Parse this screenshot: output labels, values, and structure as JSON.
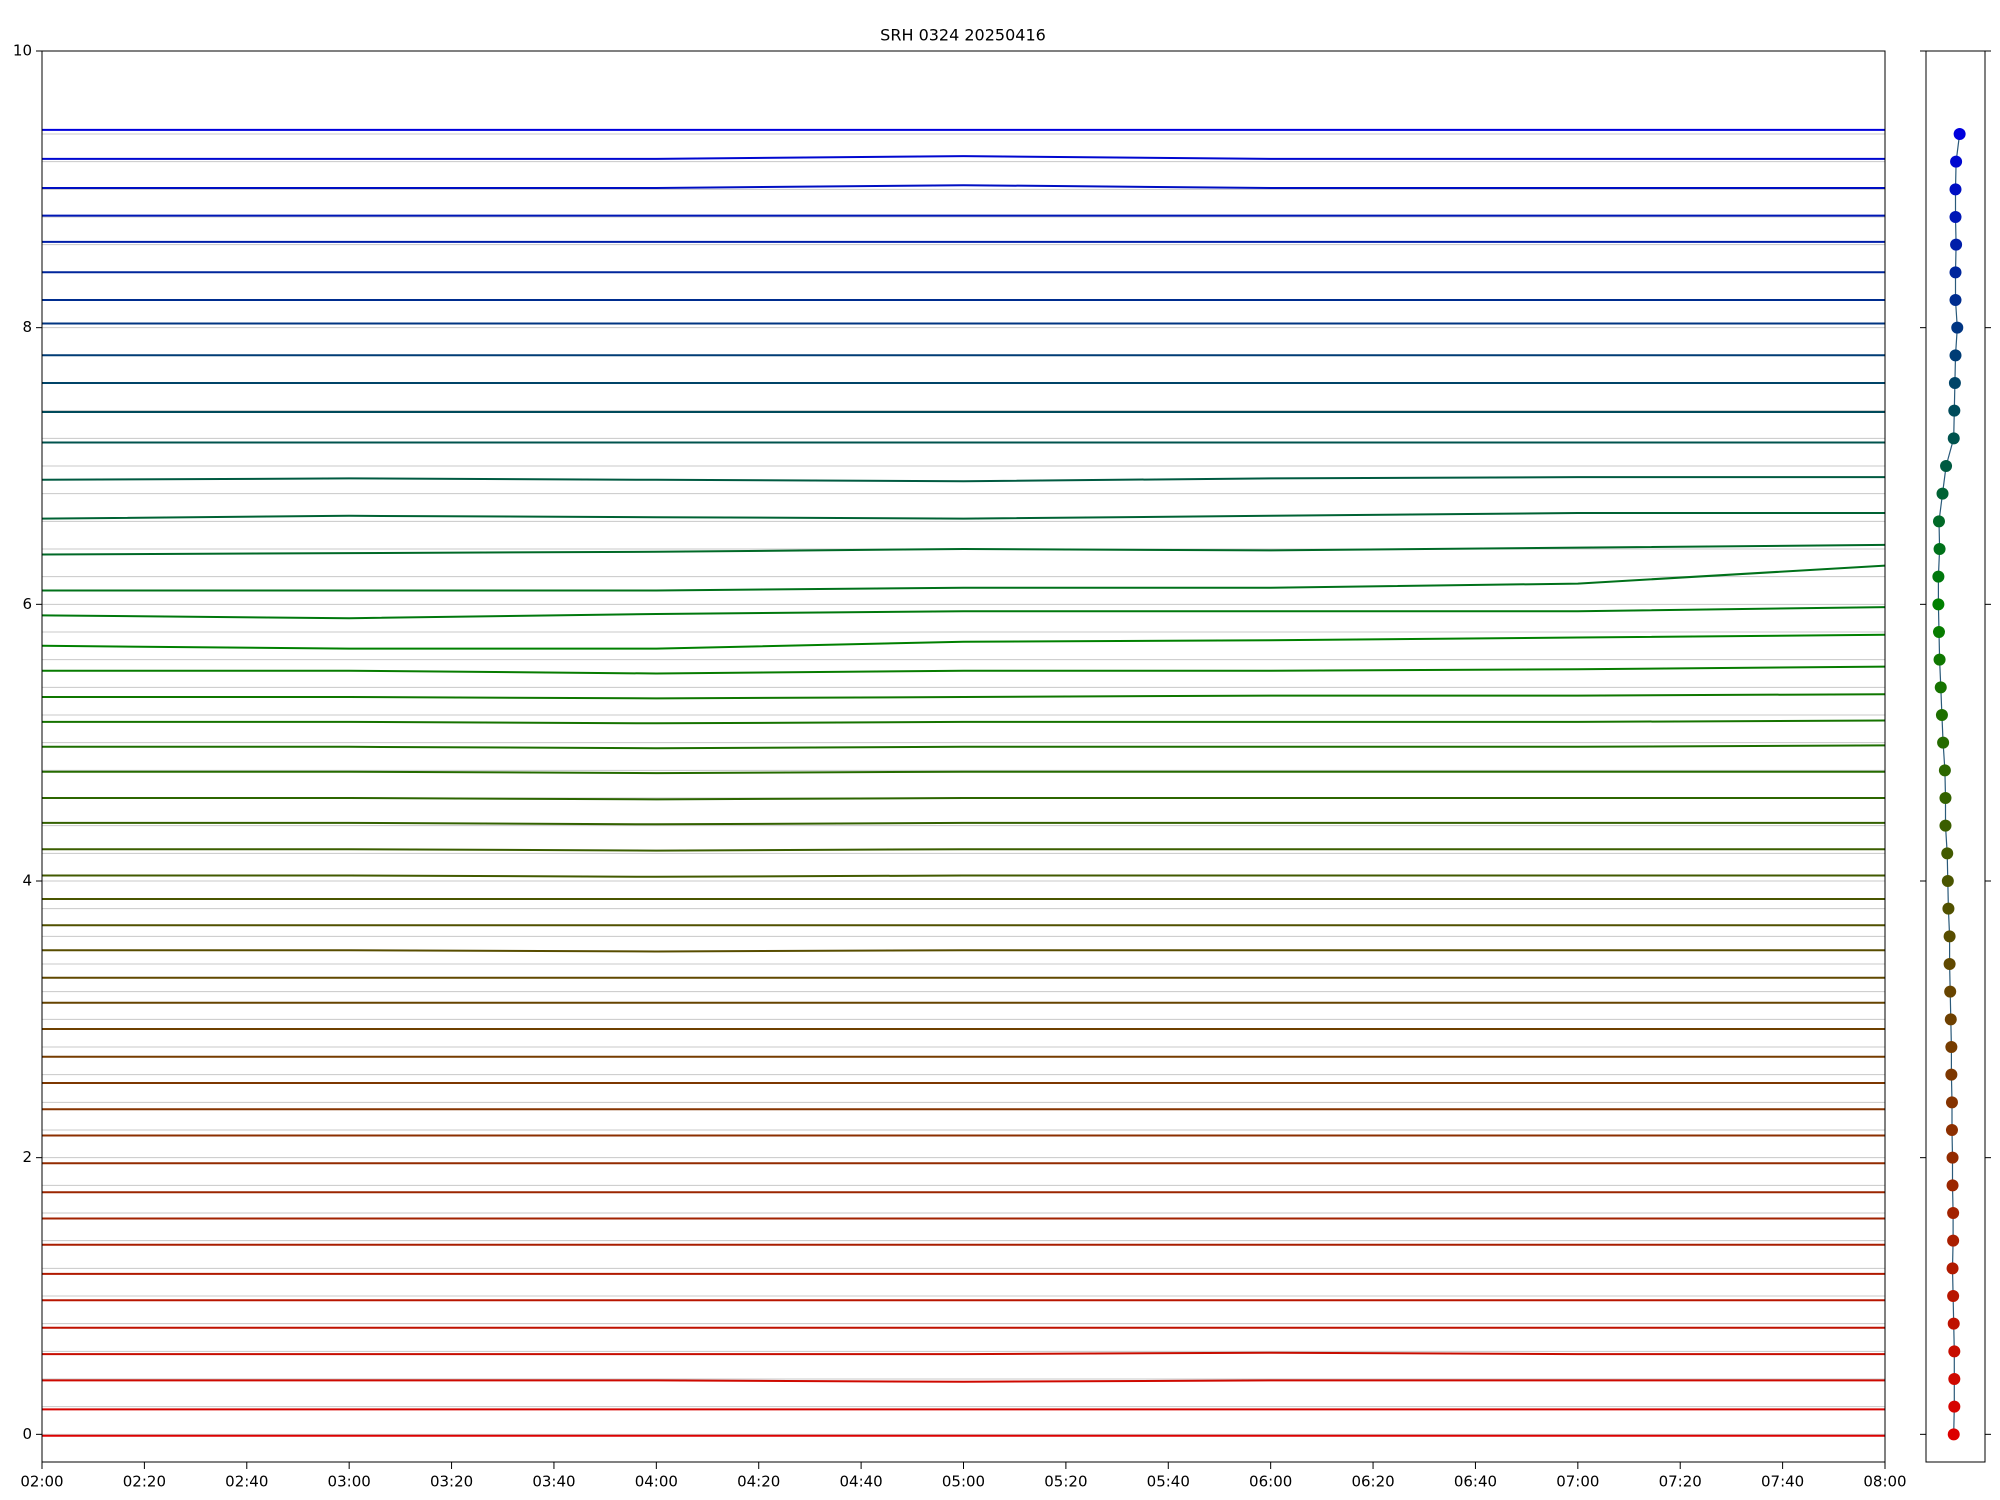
{
  "chart_data": [
    {
      "type": "line",
      "title": "SRH 0324 20250416",
      "x": [
        120,
        180,
        240,
        300,
        360,
        420,
        480
      ],
      "xlim": [
        120,
        480
      ],
      "xticks": [
        {
          "value": 120,
          "label": "02:00"
        },
        {
          "value": 140,
          "label": "02:20"
        },
        {
          "value": 160,
          "label": "02:40"
        },
        {
          "value": 180,
          "label": "03:00"
        },
        {
          "value": 200,
          "label": "03:20"
        },
        {
          "value": 220,
          "label": "03:40"
        },
        {
          "value": 240,
          "label": "04:00"
        },
        {
          "value": 260,
          "label": "04:20"
        },
        {
          "value": 280,
          "label": "04:40"
        },
        {
          "value": 300,
          "label": "05:00"
        },
        {
          "value": 320,
          "label": "05:20"
        },
        {
          "value": 340,
          "label": "05:40"
        },
        {
          "value": 360,
          "label": "06:00"
        },
        {
          "value": 380,
          "label": "06:20"
        },
        {
          "value": 400,
          "label": "06:40"
        },
        {
          "value": 420,
          "label": "07:00"
        },
        {
          "value": 440,
          "label": "07:20"
        },
        {
          "value": 460,
          "label": "07:40"
        },
        {
          "value": 480,
          "label": "08:00"
        }
      ],
      "ylim": [
        -0.2,
        10
      ],
      "yticks": [
        0,
        2,
        4,
        6,
        8,
        10
      ],
      "series": [
        {
          "color": "#dd0000",
          "values": [
            -0.01,
            -0.01,
            -0.01,
            -0.01,
            -0.01,
            -0.01,
            -0.01
          ]
        },
        {
          "color": "#d60400",
          "values": [
            0.18,
            0.18,
            0.18,
            0.18,
            0.18,
            0.18,
            0.18
          ]
        },
        {
          "color": "#ce0900",
          "values": [
            0.39,
            0.39,
            0.39,
            0.38,
            0.39,
            0.39,
            0.39
          ]
        },
        {
          "color": "#c70d00",
          "values": [
            0.58,
            0.58,
            0.58,
            0.58,
            0.59,
            0.58,
            0.58
          ]
        },
        {
          "color": "#bf1100",
          "values": [
            0.77,
            0.77,
            0.77,
            0.77,
            0.77,
            0.77,
            0.77
          ]
        },
        {
          "color": "#b81500",
          "values": [
            0.97,
            0.97,
            0.97,
            0.97,
            0.97,
            0.97,
            0.97
          ]
        },
        {
          "color": "#b11a00",
          "values": [
            1.16,
            1.16,
            1.16,
            1.16,
            1.16,
            1.16,
            1.16
          ]
        },
        {
          "color": "#a91e00",
          "values": [
            1.37,
            1.37,
            1.37,
            1.37,
            1.37,
            1.37,
            1.37
          ]
        },
        {
          "color": "#a22200",
          "values": [
            1.56,
            1.56,
            1.56,
            1.56,
            1.56,
            1.56,
            1.56
          ]
        },
        {
          "color": "#9b2600",
          "values": [
            1.75,
            1.75,
            1.75,
            1.75,
            1.75,
            1.75,
            1.75
          ]
        },
        {
          "color": "#932b00",
          "values": [
            1.96,
            1.96,
            1.96,
            1.96,
            1.96,
            1.96,
            1.96
          ]
        },
        {
          "color": "#8c2f00",
          "values": [
            2.16,
            2.16,
            2.16,
            2.16,
            2.16,
            2.16,
            2.16
          ]
        },
        {
          "color": "#853300",
          "values": [
            2.35,
            2.35,
            2.35,
            2.35,
            2.35,
            2.35,
            2.35
          ]
        },
        {
          "color": "#7d3700",
          "values": [
            2.54,
            2.54,
            2.54,
            2.54,
            2.54,
            2.54,
            2.54
          ]
        },
        {
          "color": "#763c00",
          "values": [
            2.73,
            2.73,
            2.73,
            2.73,
            2.73,
            2.73,
            2.73
          ]
        },
        {
          "color": "#6e4000",
          "values": [
            2.93,
            2.93,
            2.93,
            2.93,
            2.93,
            2.93,
            2.93
          ]
        },
        {
          "color": "#674400",
          "values": [
            3.12,
            3.12,
            3.12,
            3.12,
            3.12,
            3.12,
            3.12
          ]
        },
        {
          "color": "#604800",
          "values": [
            3.3,
            3.3,
            3.3,
            3.3,
            3.3,
            3.3,
            3.3
          ]
        },
        {
          "color": "#584d00",
          "values": [
            3.5,
            3.5,
            3.49,
            3.5,
            3.5,
            3.5,
            3.5
          ]
        },
        {
          "color": "#515100",
          "values": [
            3.68,
            3.68,
            3.68,
            3.68,
            3.68,
            3.68,
            3.68
          ]
        },
        {
          "color": "#4a5500",
          "values": [
            3.87,
            3.87,
            3.87,
            3.87,
            3.87,
            3.87,
            3.87
          ]
        },
        {
          "color": "#425a00",
          "values": [
            4.04,
            4.04,
            4.03,
            4.04,
            4.04,
            4.04,
            4.04
          ]
        },
        {
          "color": "#3b5e00",
          "values": [
            4.23,
            4.23,
            4.22,
            4.23,
            4.23,
            4.23,
            4.23
          ]
        },
        {
          "color": "#346200",
          "values": [
            4.42,
            4.42,
            4.41,
            4.42,
            4.42,
            4.42,
            4.42
          ]
        },
        {
          "color": "#2c6600",
          "values": [
            4.6,
            4.6,
            4.59,
            4.6,
            4.6,
            4.6,
            4.6
          ]
        },
        {
          "color": "#256b00",
          "values": [
            4.79,
            4.79,
            4.78,
            4.79,
            4.79,
            4.79,
            4.79
          ]
        },
        {
          "color": "#1d6f00",
          "values": [
            4.97,
            4.97,
            4.96,
            4.97,
            4.97,
            4.97,
            4.98
          ]
        },
        {
          "color": "#167300",
          "values": [
            5.15,
            5.15,
            5.14,
            5.15,
            5.15,
            5.15,
            5.16
          ]
        },
        {
          "color": "#0f7700",
          "values": [
            5.33,
            5.33,
            5.32,
            5.33,
            5.34,
            5.34,
            5.35
          ]
        },
        {
          "color": "#077c00",
          "values": [
            5.52,
            5.52,
            5.5,
            5.52,
            5.52,
            5.53,
            5.55
          ]
        },
        {
          "color": "#008000",
          "values": [
            5.7,
            5.68,
            5.68,
            5.73,
            5.74,
            5.76,
            5.78
          ]
        },
        {
          "color": "#00780d",
          "values": [
            5.92,
            5.9,
            5.93,
            5.95,
            5.95,
            5.95,
            5.98
          ]
        },
        {
          "color": "#00711a",
          "values": [
            6.1,
            6.1,
            6.1,
            6.12,
            6.12,
            6.15,
            6.28
          ]
        },
        {
          "color": "#006927",
          "values": [
            6.36,
            6.37,
            6.38,
            6.4,
            6.39,
            6.41,
            6.43
          ]
        },
        {
          "color": "#006234",
          "values": [
            6.62,
            6.64,
            6.63,
            6.62,
            6.64,
            6.66,
            6.66
          ]
        },
        {
          "color": "#005a41",
          "values": [
            6.9,
            6.91,
            6.9,
            6.89,
            6.91,
            6.92,
            6.92
          ]
        },
        {
          "color": "#00534e",
          "values": [
            7.17,
            7.17,
            7.17,
            7.17,
            7.17,
            7.17,
            7.17
          ]
        },
        {
          "color": "#004b5b",
          "values": [
            7.39,
            7.39,
            7.39,
            7.39,
            7.39,
            7.39,
            7.39
          ]
        },
        {
          "color": "#004468",
          "values": [
            7.6,
            7.6,
            7.6,
            7.6,
            7.6,
            7.6,
            7.6
          ]
        },
        {
          "color": "#003c75",
          "values": [
            7.8,
            7.8,
            7.8,
            7.8,
            7.8,
            7.8,
            7.8
          ]
        },
        {
          "color": "#003582",
          "values": [
            8.03,
            8.03,
            8.03,
            8.03,
            8.03,
            8.03,
            8.03
          ]
        },
        {
          "color": "#002d8f",
          "values": [
            8.2,
            8.2,
            8.2,
            8.2,
            8.2,
            8.2,
            8.2
          ]
        },
        {
          "color": "#00269c",
          "values": [
            8.4,
            8.4,
            8.4,
            8.4,
            8.4,
            8.4,
            8.4
          ]
        },
        {
          "color": "#001ea9",
          "values": [
            8.62,
            8.62,
            8.62,
            8.62,
            8.62,
            8.62,
            8.62
          ]
        },
        {
          "color": "#0017b6",
          "values": [
            8.81,
            8.81,
            8.81,
            8.81,
            8.81,
            8.81,
            8.81
          ]
        },
        {
          "color": "#000fc3",
          "values": [
            9.01,
            9.01,
            9.01,
            9.03,
            9.01,
            9.01,
            9.01
          ]
        },
        {
          "color": "#0008d0",
          "values": [
            9.22,
            9.22,
            9.22,
            9.24,
            9.22,
            9.22,
            9.22
          ]
        },
        {
          "color": "#0000dd",
          "values": [
            9.43,
            9.43,
            9.43,
            9.43,
            9.43,
            9.43,
            9.43
          ]
        }
      ]
    },
    {
      "type": "scatter",
      "xlim": [
        0,
        1
      ],
      "ylim": [
        -0.2,
        10
      ],
      "x": [
        0.47,
        0.48,
        0.48,
        0.48,
        0.47,
        0.46,
        0.45,
        0.46,
        0.46,
        0.45,
        0.45,
        0.44,
        0.44,
        0.43,
        0.43,
        0.42,
        0.41,
        0.4,
        0.4,
        0.38,
        0.37,
        0.36,
        0.33,
        0.33,
        0.32,
        0.29,
        0.27,
        0.25,
        0.23,
        0.22,
        0.21,
        0.21,
        0.23,
        0.22,
        0.28,
        0.34,
        0.47,
        0.48,
        0.49,
        0.5,
        0.53,
        0.5,
        0.5,
        0.51,
        0.5,
        0.5,
        0.51,
        0.57
      ],
      "y": [
        0,
        0.2,
        0.4,
        0.6,
        0.8,
        1.0,
        1.2,
        1.4,
        1.6,
        1.8,
        2.0,
        2.2,
        2.4,
        2.6,
        2.8,
        3.0,
        3.2,
        3.4,
        3.6,
        3.8,
        4.0,
        4.2,
        4.4,
        4.6,
        4.8,
        5.0,
        5.2,
        5.4,
        5.6,
        5.8,
        6.0,
        6.2,
        6.4,
        6.6,
        6.8,
        7.0,
        7.2,
        7.4,
        7.6,
        7.8,
        8.0,
        8.2,
        8.4,
        8.6,
        8.8,
        9.0,
        9.2,
        9.4
      ]
    }
  ]
}
